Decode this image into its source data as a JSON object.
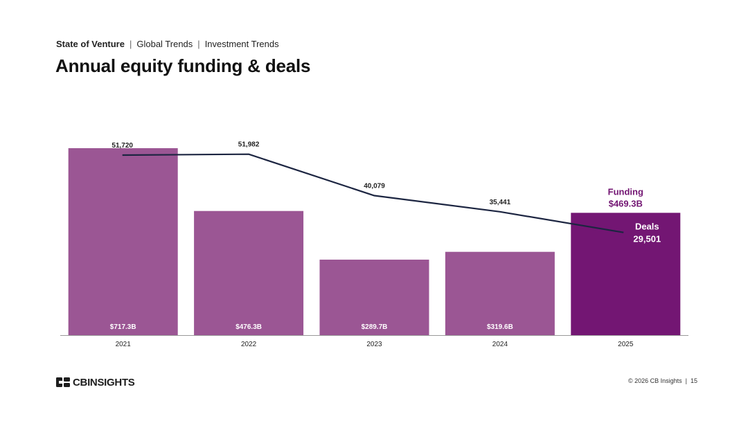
{
  "header": {
    "breadcrumb": [
      "State of Venture",
      "Global Trends",
      "Investment Trends"
    ],
    "title": "Annual equity funding & deals"
  },
  "footer": {
    "brand": "CBINSIGHTS",
    "copyright": "© 2026 CB Insights",
    "page_number": "15"
  },
  "colors": {
    "bar": "#9b5694",
    "bar_highlight": "#731673",
    "line": "#1c2541",
    "axis": "#999999",
    "text_dark": "#222222",
    "text_light": "#ffffff",
    "callout": "#731673"
  },
  "chart_data": {
    "type": "bar+line",
    "categories": [
      "2021",
      "2022",
      "2023",
      "2024",
      "2025"
    ],
    "series": [
      {
        "name": "Funding",
        "type": "bar",
        "unit": "$B",
        "values": [
          717.3,
          476.3,
          289.7,
          319.6,
          469.3
        ],
        "labels": [
          "$717.3B",
          "$476.3B",
          "$289.7B",
          "$319.6B",
          "$469.3B"
        ],
        "ylim": [
          0,
          717.3
        ]
      },
      {
        "name": "Deals",
        "type": "line",
        "values": [
          51720,
          51982,
          40079,
          35441,
          29501
        ],
        "labels": [
          "51,720",
          "51,982",
          "40,079",
          "35,441",
          "29,501"
        ],
        "ylim": [
          0,
          60000
        ]
      }
    ],
    "highlight_index": 4,
    "callouts": {
      "funding_title": "Funding",
      "funding_value": "$469.3B",
      "deals_title": "Deals",
      "deals_value": "29,501"
    },
    "legend": "none",
    "grid": false
  }
}
